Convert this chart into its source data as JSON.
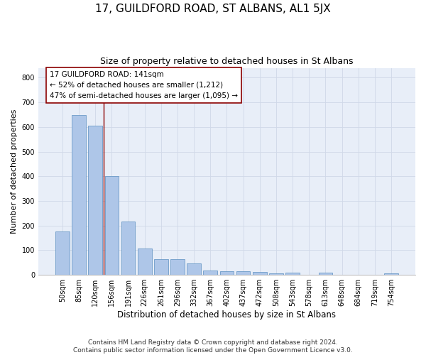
{
  "title": "17, GUILDFORD ROAD, ST ALBANS, AL1 5JX",
  "subtitle": "Size of property relative to detached houses in St Albans",
  "xlabel": "Distribution of detached houses by size in St Albans",
  "ylabel": "Number of detached properties",
  "footer_line1": "Contains HM Land Registry data © Crown copyright and database right 2024.",
  "footer_line2": "Contains public sector information licensed under the Open Government Licence v3.0.",
  "bar_labels": [
    "50sqm",
    "85sqm",
    "120sqm",
    "156sqm",
    "191sqm",
    "226sqm",
    "261sqm",
    "296sqm",
    "332sqm",
    "367sqm",
    "402sqm",
    "437sqm",
    "472sqm",
    "508sqm",
    "543sqm",
    "578sqm",
    "613sqm",
    "648sqm",
    "684sqm",
    "719sqm",
    "754sqm"
  ],
  "bar_values": [
    175,
    650,
    605,
    400,
    218,
    108,
    65,
    65,
    48,
    18,
    16,
    16,
    13,
    7,
    8,
    2,
    8,
    2,
    2,
    2,
    7
  ],
  "bar_color": "#aec6e8",
  "bar_edge_color": "#5a8fc0",
  "ylim": [
    0,
    840
  ],
  "yticks": [
    0,
    100,
    200,
    300,
    400,
    500,
    600,
    700,
    800
  ],
  "property_label": "17 GUILDFORD ROAD: 141sqm",
  "annotation_line1": "← 52% of detached houses are smaller (1,212)",
  "annotation_line2": "47% of semi-detached houses are larger (1,095) →",
  "vline_position": 2.5,
  "grid_color": "#d0d8e8",
  "bg_color": "#e8eef8",
  "bar_width": 0.85,
  "title_fontsize": 11,
  "subtitle_fontsize": 9,
  "xlabel_fontsize": 8.5,
  "ylabel_fontsize": 8,
  "tick_fontsize": 7,
  "annotation_fontsize": 7.5,
  "footer_fontsize": 6.5
}
